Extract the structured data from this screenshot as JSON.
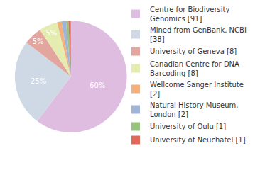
{
  "chart_data": {
    "type": "pie",
    "categories": [
      "Centre for Biodiversity Genomics [91]",
      "Mined from GenBank, NCBI [38]",
      "University of Geneva [8]",
      "Canadian Centre for DNA Barcoding [8]",
      "Wellcome Sanger Institute [2]",
      "Natural History Museum, London [2]",
      "University of Oulu [1]",
      "University of Neuchatel [1]"
    ],
    "values": [
      60.3,
      25.2,
      5.3,
      5.3,
      1.3,
      1.3,
      0.7,
      0.7
    ],
    "value_labels": [
      "60%",
      "25%",
      "5%",
      "5%",
      null,
      null,
      null,
      null
    ],
    "colors": [
      "#dfbde0",
      "#cfd9e6",
      "#e2a69e",
      "#e5ecaf",
      "#f1b07e",
      "#a0b4d8",
      "#96c47e",
      "#e06a5a"
    ],
    "data_labels": true,
    "legend": "right"
  }
}
